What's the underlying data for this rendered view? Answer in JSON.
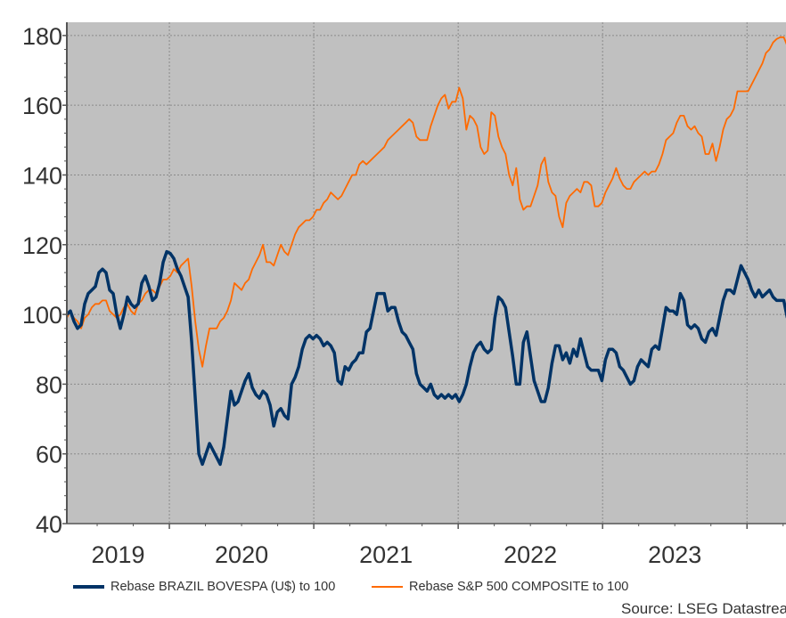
{
  "chart_data": {
    "type": "line",
    "title": "",
    "xlabel": "",
    "ylabel": "",
    "xlim": [
      2019.29,
      2024.27
    ],
    "ylim": [
      40,
      183.8
    ],
    "grid": true,
    "legend_position": "bottom",
    "x_tick_labels": [
      "2019",
      "2020",
      "2021",
      "2022",
      "2023"
    ],
    "x_year_boundaries": [
      2020,
      2021,
      2022,
      2023,
      2024
    ],
    "y_ticks": [
      40,
      60,
      80,
      100,
      120,
      140,
      160,
      180
    ],
    "start_year": 2019.29,
    "step_years": 0.0247,
    "colors": {
      "plot_bg": "#c0c0c0",
      "grid": "#8a8a8a",
      "axis": "#555555",
      "text": "#333333"
    },
    "series": [
      {
        "name": "Rebase BRAZIL BOVESPA (U$) to 100",
        "color": "#003366",
        "values": [
          100,
          101,
          98,
          96,
          97,
          103,
          106,
          107,
          108,
          112,
          113,
          112,
          107,
          106,
          100,
          96,
          100,
          105,
          103,
          102,
          103,
          109,
          111,
          108,
          104,
          105,
          109,
          115,
          118,
          117.5,
          116,
          113,
          111,
          108,
          105,
          92,
          76,
          60,
          57,
          60,
          63,
          61,
          59,
          57,
          62,
          70,
          78,
          74,
          75,
          78,
          81,
          83,
          79,
          77,
          76,
          78,
          77,
          74,
          68,
          72,
          73,
          71,
          70,
          80,
          82,
          85,
          90,
          93,
          94,
          93,
          94,
          93,
          91,
          92,
          91,
          89,
          81,
          80,
          85,
          84,
          86,
          87,
          89,
          89,
          95,
          96,
          101,
          106,
          106,
          106,
          101,
          102,
          102,
          98,
          95,
          94,
          92,
          90,
          83,
          80,
          79,
          78,
          80,
          77,
          76,
          77,
          76,
          77,
          76,
          77,
          75,
          77,
          80,
          85,
          89,
          91,
          92,
          90,
          89,
          90,
          99,
          105,
          104,
          102,
          95,
          88,
          80,
          80,
          92,
          95,
          88,
          81,
          78,
          75,
          75,
          79,
          86,
          91,
          91,
          87,
          89,
          86,
          90,
          88,
          93,
          89,
          85,
          84,
          84,
          84,
          81,
          87,
          90,
          90,
          89,
          85,
          84,
          82,
          80,
          81,
          85,
          87,
          86,
          85,
          90,
          91,
          90,
          96,
          102,
          101,
          101,
          100,
          106,
          104,
          97,
          96,
          97,
          96,
          93,
          92,
          95,
          96,
          94,
          99,
          104,
          107,
          107,
          106,
          110,
          114,
          112,
          110,
          107,
          105,
          107,
          105,
          106,
          107,
          105,
          104,
          104,
          104,
          99
        ]
      },
      {
        "name": "Rebase S&P 500 COMPOSITE to 100",
        "color": "#ff6a00",
        "values": [
          99,
          101,
          99,
          98,
          96,
          99,
          100,
          102,
          103,
          103,
          104,
          104,
          101,
          100,
          99,
          100,
          102,
          103,
          101,
          100,
          103,
          104,
          106,
          107,
          107,
          106,
          108,
          110,
          110,
          111,
          113,
          112,
          114,
          115,
          116,
          108,
          98,
          90,
          85,
          91,
          96,
          96,
          96,
          98,
          99,
          101,
          104,
          109,
          108,
          107,
          109,
          110,
          113,
          115,
          117,
          120,
          115,
          115,
          114,
          117,
          120,
          118,
          117,
          120,
          123,
          125,
          126,
          127,
          127,
          128,
          130,
          130,
          132,
          133,
          135,
          134,
          133,
          134,
          136,
          138,
          140,
          140,
          143,
          144,
          143,
          144,
          145,
          146,
          147,
          148,
          150,
          151,
          152,
          153,
          154,
          155,
          156,
          155,
          151,
          150,
          150,
          150,
          154,
          157,
          160,
          162,
          163,
          159,
          161,
          161,
          165,
          162,
          153,
          157,
          156,
          154,
          148,
          146,
          147,
          158,
          157,
          151,
          148,
          146,
          140,
          137,
          142,
          133,
          130,
          131,
          131,
          134,
          137,
          143,
          145,
          138,
          135,
          134,
          128,
          125,
          132,
          134,
          135,
          136,
          135,
          138,
          138,
          137,
          131,
          131,
          132,
          135,
          137,
          139,
          142,
          139,
          137,
          136,
          136,
          138,
          139,
          140,
          141,
          140,
          141,
          141,
          143,
          146,
          150,
          151,
          152,
          155,
          157,
          157,
          154,
          153,
          154,
          152,
          151,
          146,
          146,
          149,
          144,
          148,
          153,
          156,
          157,
          159,
          164,
          164,
          164,
          164,
          166,
          168,
          170,
          172,
          175,
          176,
          178,
          179,
          179.5,
          179.5,
          177
        ]
      }
    ]
  },
  "source_text": "Source: LSEG Datastream"
}
